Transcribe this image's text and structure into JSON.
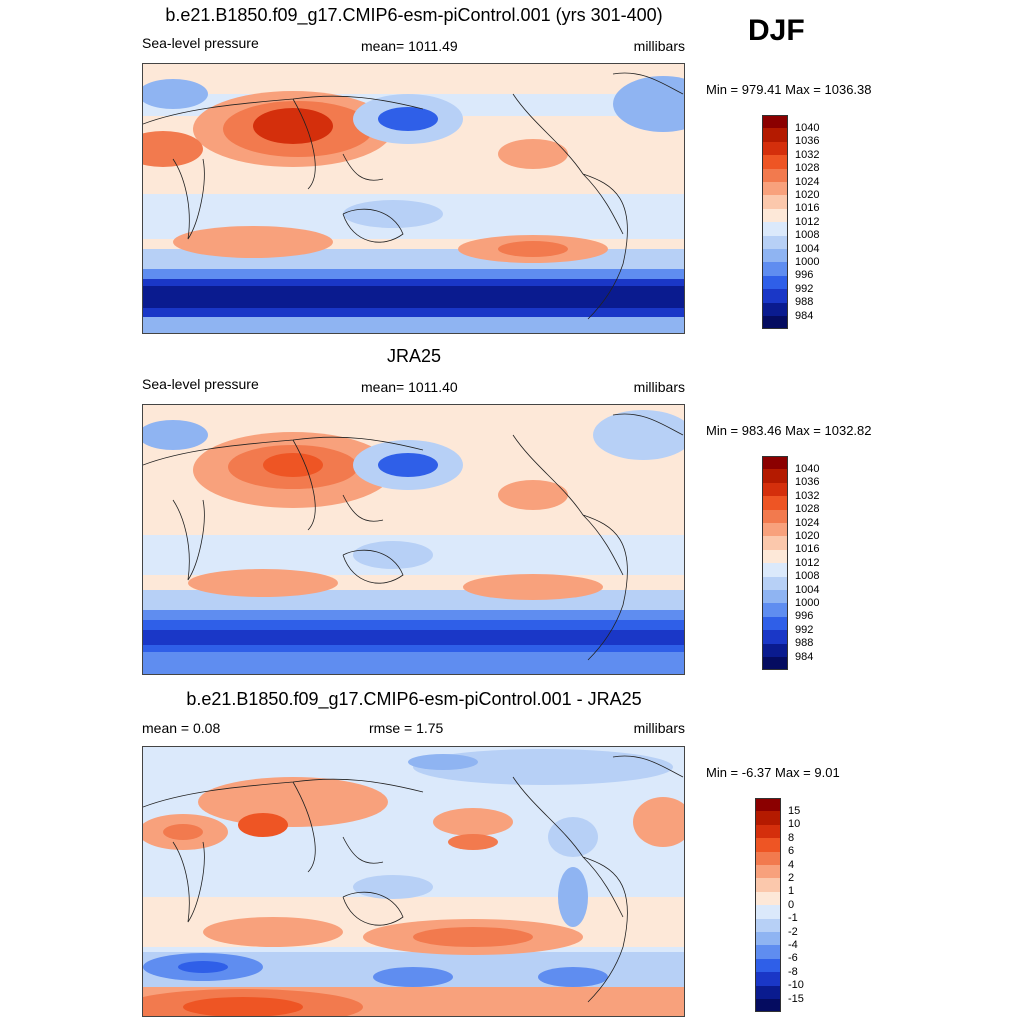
{
  "season_label": "DJF",
  "panels": [
    {
      "id": "model",
      "title": "b.e21.B1850.f09_g17.CMIP6-esm-piControl.001 (yrs 301-400)",
      "left_label": "Sea-level pressure",
      "center_label": "mean= 1011.49",
      "right_label": "millibars",
      "minmax": "Min = 979.41 Max = 1036.38",
      "legend": {
        "labels": [
          "1040",
          "1036",
          "1032",
          "1028",
          "1024",
          "1020",
          "1016",
          "1012",
          "1008",
          "1004",
          "1000",
          "996",
          "992",
          "988",
          "984"
        ],
        "colors": [
          "#8b0000",
          "#b41a00",
          "#d42f0c",
          "#ee5524",
          "#f27a4e",
          "#f8a17c",
          "#fbc8ac",
          "#fde8d8",
          "#dbe9fb",
          "#b7d0f6",
          "#8fb4f2",
          "#5f8df0",
          "#2f5fe8",
          "#1a37c7",
          "#0a1b8f",
          "#050c60"
        ]
      }
    },
    {
      "id": "obs",
      "title": "JRA25",
      "left_label": "Sea-level pressure",
      "center_label": "mean= 1011.40",
      "right_label": "millibars",
      "minmax": "Min = 983.46 Max = 1032.82",
      "legend": {
        "labels": [
          "1040",
          "1036",
          "1032",
          "1028",
          "1024",
          "1020",
          "1016",
          "1012",
          "1008",
          "1004",
          "1000",
          "996",
          "992",
          "988",
          "984"
        ],
        "colors": [
          "#8b0000",
          "#b41a00",
          "#d42f0c",
          "#ee5524",
          "#f27a4e",
          "#f8a17c",
          "#fbc8ac",
          "#fde8d8",
          "#dbe9fb",
          "#b7d0f6",
          "#8fb4f2",
          "#5f8df0",
          "#2f5fe8",
          "#1a37c7",
          "#0a1b8f",
          "#050c60"
        ]
      }
    },
    {
      "id": "diff",
      "title": "b.e21.B1850.f09_g17.CMIP6-esm-piControl.001 - JRA25",
      "left_label": "mean =   0.08",
      "center_label": "rmse =   1.75",
      "right_label": "millibars",
      "minmax": "Min =  -6.37 Max =   9.01",
      "legend": {
        "labels": [
          "15",
          "10",
          "8",
          "6",
          "4",
          "2",
          "1",
          "0",
          "-1",
          "-2",
          "-4",
          "-6",
          "-8",
          "-10",
          "-15"
        ],
        "colors": [
          "#8b0000",
          "#b41a00",
          "#d42f0c",
          "#ee5524",
          "#f27a4e",
          "#f8a17c",
          "#fbc8ac",
          "#fde8d8",
          "#dbe9fb",
          "#b7d0f6",
          "#8fb4f2",
          "#5f8df0",
          "#2f5fe8",
          "#1a37c7",
          "#0a1b8f",
          "#050c60"
        ]
      }
    }
  ]
}
